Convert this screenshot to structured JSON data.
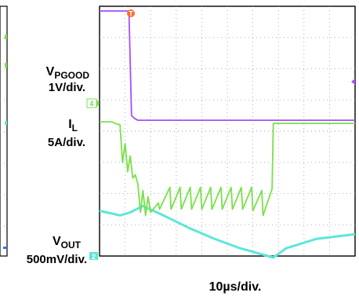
{
  "chart_data": {
    "type": "line",
    "title": "",
    "labels": {
      "vpgood": {
        "main": "V",
        "sub": "PGOOD",
        "scale": "1V/div."
      },
      "il": {
        "main": "I",
        "sub": "L",
        "scale": "5A/div."
      },
      "vout": {
        "main": "V",
        "sub": "OUT",
        "scale": "500mV/div."
      },
      "time": "10µs/div."
    },
    "markers": {
      "trigger": "T",
      "ch4": "4",
      "ch2": "2"
    },
    "grid": {
      "divisions_x": 10,
      "divisions_y": 8,
      "visible": true
    },
    "x_units": "divisions",
    "y_units": "divisions",
    "series": [
      {
        "key": "vpgood",
        "color": "#a64dff",
        "points": [
          [
            0,
            7.85
          ],
          [
            1.05,
            7.85
          ],
          [
            1.15,
            7.85
          ],
          [
            1.25,
            4.5
          ],
          [
            1.35,
            4.42
          ],
          [
            1.45,
            4.37
          ],
          [
            1.5,
            4.35
          ],
          [
            10,
            4.35
          ]
        ]
      },
      {
        "key": "il",
        "color": "#78e04a",
        "points": [
          [
            0,
            4.3
          ],
          [
            0.5,
            4.3
          ],
          [
            0.6,
            4.25
          ],
          [
            0.8,
            4.2
          ],
          [
            0.9,
            3.0
          ],
          [
            1.0,
            3.6
          ],
          [
            1.1,
            2.7
          ],
          [
            1.2,
            3.2
          ],
          [
            1.3,
            2.5
          ],
          [
            1.4,
            2.6
          ],
          [
            1.5,
            2.3
          ],
          [
            1.6,
            1.4
          ],
          [
            1.7,
            2.1
          ],
          [
            1.8,
            1.3
          ],
          [
            1.9,
            1.9
          ],
          [
            2.0,
            1.4
          ],
          [
            2.3,
            1.7
          ],
          [
            2.35,
            1.5
          ],
          [
            2.75,
            2.2
          ],
          [
            2.8,
            1.5
          ],
          [
            3.15,
            2.2
          ],
          [
            3.2,
            1.5
          ],
          [
            3.55,
            2.2
          ],
          [
            3.6,
            1.5
          ],
          [
            3.95,
            2.2
          ],
          [
            4.0,
            1.5
          ],
          [
            4.35,
            2.2
          ],
          [
            4.4,
            1.5
          ],
          [
            4.75,
            2.2
          ],
          [
            4.8,
            1.5
          ],
          [
            5.15,
            2.2
          ],
          [
            5.2,
            1.5
          ],
          [
            5.55,
            2.2
          ],
          [
            5.6,
            1.5
          ],
          [
            5.95,
            2.2
          ],
          [
            6.0,
            1.45
          ],
          [
            6.35,
            2.1
          ],
          [
            6.4,
            1.3
          ],
          [
            6.75,
            2.15
          ],
          [
            6.8,
            4.25
          ],
          [
            10,
            4.25
          ]
        ]
      },
      {
        "key": "vout",
        "color": "#5ee6d8",
        "points": [
          [
            0,
            1.45
          ],
          [
            0.8,
            1.3
          ],
          [
            1.2,
            1.4
          ],
          [
            1.7,
            1.6
          ],
          [
            2.5,
            1.3
          ],
          [
            3.5,
            0.9
          ],
          [
            4.5,
            0.55
          ],
          [
            5.5,
            0.25
          ],
          [
            6.8,
            -0.05
          ],
          [
            7.3,
            0.25
          ],
          [
            8.5,
            0.55
          ],
          [
            10,
            0.7
          ]
        ]
      }
    ]
  }
}
